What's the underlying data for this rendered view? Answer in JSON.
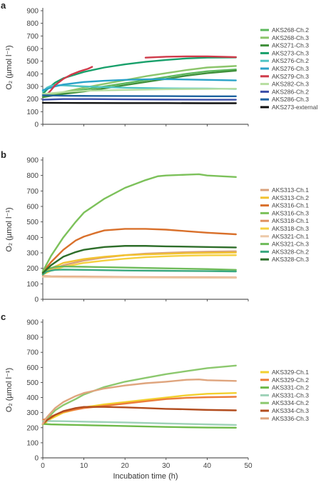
{
  "figure": {
    "x_axis_label": "Incubation time (h)",
    "y_axis_label": "O₂ (µmol l⁻¹)"
  },
  "chart_data": [
    {
      "type": "line",
      "panel": "a",
      "xlim": [
        0,
        50
      ],
      "ylim": [
        0,
        900
      ],
      "x_ticks": [
        0,
        10,
        20,
        30,
        40,
        50
      ],
      "y_ticks": [
        0,
        100,
        200,
        300,
        400,
        500,
        600,
        700,
        800,
        900
      ],
      "x_tick_labels_visible": false,
      "legend_position": "right",
      "series": [
        {
          "name": "AKS268-Ch.2",
          "color": "#5cb85c",
          "x": [
            0,
            2,
            5,
            10,
            15,
            20,
            25,
            30,
            35,
            40,
            47
          ],
          "y": [
            220,
            230,
            245,
            275,
            300,
            325,
            350,
            375,
            400,
            420,
            435
          ]
        },
        {
          "name": "AKS268-Ch.3",
          "color": "#8cc56b",
          "x": [
            0,
            2,
            5,
            10,
            15,
            20,
            25,
            30,
            35,
            40,
            47
          ],
          "y": [
            225,
            235,
            255,
            290,
            320,
            350,
            380,
            405,
            430,
            450,
            462
          ]
        },
        {
          "name": "AKS271-Ch.3",
          "color": "#3f8f3a",
          "x": [
            0,
            2,
            5,
            10,
            15,
            20,
            25,
            30,
            35,
            40,
            47
          ],
          "y": [
            215,
            225,
            240,
            260,
            285,
            310,
            335,
            360,
            385,
            405,
            425
          ]
        },
        {
          "name": "AKS273-Ch.3",
          "color": "#18a06b",
          "x": [
            0,
            1,
            3,
            5,
            8,
            10,
            15,
            20,
            25,
            30,
            35,
            40,
            47
          ],
          "y": [
            240,
            275,
            330,
            365,
            395,
            415,
            450,
            475,
            495,
            510,
            522,
            528,
            530
          ]
        },
        {
          "name": "AKS276-Ch.2",
          "color": "#4ec4c4",
          "x": [
            0,
            1,
            2,
            3,
            5,
            10,
            20,
            30,
            40,
            47
          ],
          "y": [
            260,
            290,
            305,
            310,
            308,
            300,
            290,
            285,
            283,
            280
          ]
        },
        {
          "name": "AKS276-Ch.3",
          "color": "#2aa2c8",
          "x": [
            0,
            1,
            2,
            3,
            5,
            10,
            15,
            20,
            25,
            30,
            35,
            40,
            47
          ],
          "y": [
            270,
            280,
            290,
            300,
            315,
            335,
            345,
            352,
            356,
            358,
            355,
            352,
            348
          ]
        },
        {
          "name": "AKS279-Ch.3",
          "color": "#cf3a4a",
          "x": [
            0,
            1,
            2,
            3,
            5,
            7,
            9,
            11,
            12,
            20,
            25,
            30,
            35,
            40,
            47
          ],
          "y": [
            230,
            235,
            270,
            310,
            360,
            395,
            420,
            440,
            455,
            null,
            528,
            535,
            538,
            538,
            532
          ]
        },
        {
          "name": "AKS282-Ch.3",
          "color": "#b7dea0",
          "x": [
            0,
            5,
            10,
            20,
            30,
            40,
            47
          ],
          "y": [
            240,
            255,
            265,
            272,
            278,
            280,
            282
          ]
        },
        {
          "name": "AKS286-Ch.2",
          "color": "#3b4fa8",
          "x": [
            0,
            5,
            10,
            20,
            30,
            40,
            47
          ],
          "y": [
            195,
            200,
            200,
            198,
            196,
            195,
            195
          ]
        },
        {
          "name": "AKS286-Ch.3",
          "color": "#1f64a0",
          "x": [
            0,
            2,
            5,
            10,
            20,
            30,
            40,
            47
          ],
          "y": [
            230,
            228,
            226,
            225,
            224,
            223,
            222,
            222
          ]
        },
        {
          "name": "AKS273-external",
          "color": "#111111",
          "x": [
            0,
            10,
            20,
            30,
            40,
            47
          ],
          "y": [
            170,
            169,
            168,
            168,
            167,
            167
          ]
        }
      ]
    },
    {
      "type": "line",
      "panel": "b",
      "xlim": [
        0,
        50
      ],
      "ylim": [
        0,
        900
      ],
      "x_ticks": [
        0,
        10,
        20,
        30,
        40,
        50
      ],
      "y_ticks": [
        0,
        100,
        200,
        300,
        400,
        500,
        600,
        700,
        800,
        900
      ],
      "x_tick_labels_visible": false,
      "legend_position": "right",
      "series": [
        {
          "name": "AKS313-Ch.1",
          "color": "#d9a07a",
          "x": [
            0,
            2,
            5,
            10,
            15,
            20,
            25,
            30,
            35,
            40,
            47
          ],
          "y": [
            165,
            190,
            220,
            250,
            270,
            285,
            295,
            300,
            305,
            308,
            310
          ]
        },
        {
          "name": "AKS313-Ch.2",
          "color": "#f2c230",
          "x": [
            0,
            2,
            5,
            10,
            15,
            20,
            25,
            30,
            35,
            40,
            47
          ],
          "y": [
            170,
            200,
            235,
            260,
            275,
            285,
            290,
            294,
            298,
            300,
            302
          ]
        },
        {
          "name": "AKS316-Ch.1",
          "color": "#d9702b",
          "x": [
            0,
            2,
            5,
            8,
            10,
            13,
            15,
            20,
            25,
            30,
            35,
            40,
            47
          ],
          "y": [
            175,
            240,
            320,
            380,
            405,
            430,
            445,
            455,
            455,
            450,
            440,
            430,
            420
          ]
        },
        {
          "name": "AKS316-Ch.3",
          "color": "#7cc15a",
          "x": [
            0,
            2,
            5,
            8,
            10,
            15,
            20,
            25,
            28,
            30,
            35,
            38,
            40,
            47
          ],
          "y": [
            180,
            280,
            400,
            500,
            560,
            650,
            720,
            770,
            795,
            800,
            805,
            808,
            800,
            790
          ]
        },
        {
          "name": "AKS318-Ch.1",
          "color": "#e09060",
          "x": [
            0,
            2,
            5,
            10,
            15,
            20,
            30,
            40,
            47
          ],
          "y": [
            150,
            148,
            147,
            146,
            145,
            144,
            143,
            142,
            141
          ]
        },
        {
          "name": "AKS318-Ch.3",
          "color": "#f5d040",
          "x": [
            0,
            2,
            5,
            10,
            15,
            20,
            25,
            30,
            35,
            40,
            47
          ],
          "y": [
            160,
            185,
            210,
            235,
            250,
            262,
            272,
            278,
            282,
            284,
            285
          ]
        },
        {
          "name": "AKS321-Ch.1",
          "color": "#ecc9a8",
          "x": [
            0,
            5,
            10,
            20,
            30,
            40,
            47
          ],
          "y": [
            145,
            143,
            142,
            141,
            140,
            139,
            138
          ]
        },
        {
          "name": "AKS321-Ch.3",
          "color": "#6ebb5a",
          "x": [
            0,
            1,
            3,
            5,
            10,
            20,
            30,
            40,
            47
          ],
          "y": [
            160,
            195,
            210,
            212,
            210,
            205,
            200,
            195,
            190
          ]
        },
        {
          "name": "AKS328-Ch.2",
          "color": "#3aa880",
          "x": [
            0,
            1,
            3,
            5,
            10,
            20,
            30,
            40,
            47
          ],
          "y": [
            160,
            180,
            190,
            192,
            190,
            186,
            184,
            182,
            180
          ]
        },
        {
          "name": "AKS328-Ch.3",
          "color": "#2e6e2a",
          "x": [
            0,
            2,
            5,
            8,
            10,
            15,
            20,
            25,
            30,
            35,
            40,
            47
          ],
          "y": [
            170,
            220,
            275,
            305,
            320,
            338,
            345,
            345,
            342,
            340,
            338,
            335
          ]
        }
      ]
    },
    {
      "type": "line",
      "panel": "c",
      "xlim": [
        0,
        50
      ],
      "ylim": [
        0,
        900
      ],
      "x_ticks": [
        0,
        10,
        20,
        30,
        40,
        50
      ],
      "y_ticks": [
        0,
        100,
        200,
        300,
        400,
        500,
        600,
        700,
        800,
        900
      ],
      "x_tick_labels_visible": true,
      "legend_position": "right",
      "series": [
        {
          "name": "AKS329-Ch.1",
          "color": "#f2d02e",
          "x": [
            0,
            2,
            5,
            10,
            15,
            20,
            25,
            30,
            35,
            40,
            47
          ],
          "y": [
            220,
            260,
            300,
            335,
            355,
            370,
            385,
            400,
            415,
            425,
            430
          ]
        },
        {
          "name": "AKS329-Ch.2",
          "color": "#ec7d3a",
          "x": [
            0,
            2,
            5,
            10,
            15,
            20,
            25,
            30,
            35,
            40,
            47
          ],
          "y": [
            250,
            275,
            305,
            330,
            345,
            360,
            375,
            390,
            398,
            402,
            405
          ]
        },
        {
          "name": "AKS331-Ch.2",
          "color": "#6fba4a",
          "x": [
            0,
            2,
            5,
            10,
            15,
            20,
            25,
            30,
            35,
            40,
            47
          ],
          "y": [
            225,
            222,
            220,
            217,
            214,
            211,
            208,
            205,
            203,
            201,
            200
          ]
        },
        {
          "name": "AKS331-Ch.3",
          "color": "#9ed2b8",
          "x": [
            0,
            2,
            5,
            10,
            20,
            30,
            40,
            47
          ],
          "y": [
            245,
            244,
            243,
            240,
            235,
            228,
            222,
            218
          ]
        },
        {
          "name": "AKS334-Ch.2",
          "color": "#8cc86e",
          "x": [
            0,
            1,
            3,
            5,
            8,
            10,
            15,
            20,
            25,
            30,
            35,
            40,
            47
          ],
          "y": [
            220,
            260,
            315,
            350,
            390,
            420,
            470,
            505,
            530,
            555,
            575,
            595,
            612
          ]
        },
        {
          "name": "AKS334-Ch.3",
          "color": "#b24c1e",
          "x": [
            0,
            1,
            3,
            5,
            8,
            10,
            15,
            20,
            25,
            30,
            35,
            40,
            47
          ],
          "y": [
            225,
            250,
            285,
            310,
            330,
            338,
            338,
            335,
            330,
            325,
            322,
            318,
            315
          ]
        },
        {
          "name": "AKS336-Ch.3",
          "color": "#dfa57e",
          "x": [
            0,
            1,
            3,
            5,
            8,
            10,
            15,
            20,
            25,
            30,
            35,
            38,
            40,
            47
          ],
          "y": [
            225,
            270,
            330,
            370,
            410,
            430,
            460,
            480,
            495,
            505,
            518,
            520,
            515,
            510
          ]
        }
      ]
    }
  ]
}
